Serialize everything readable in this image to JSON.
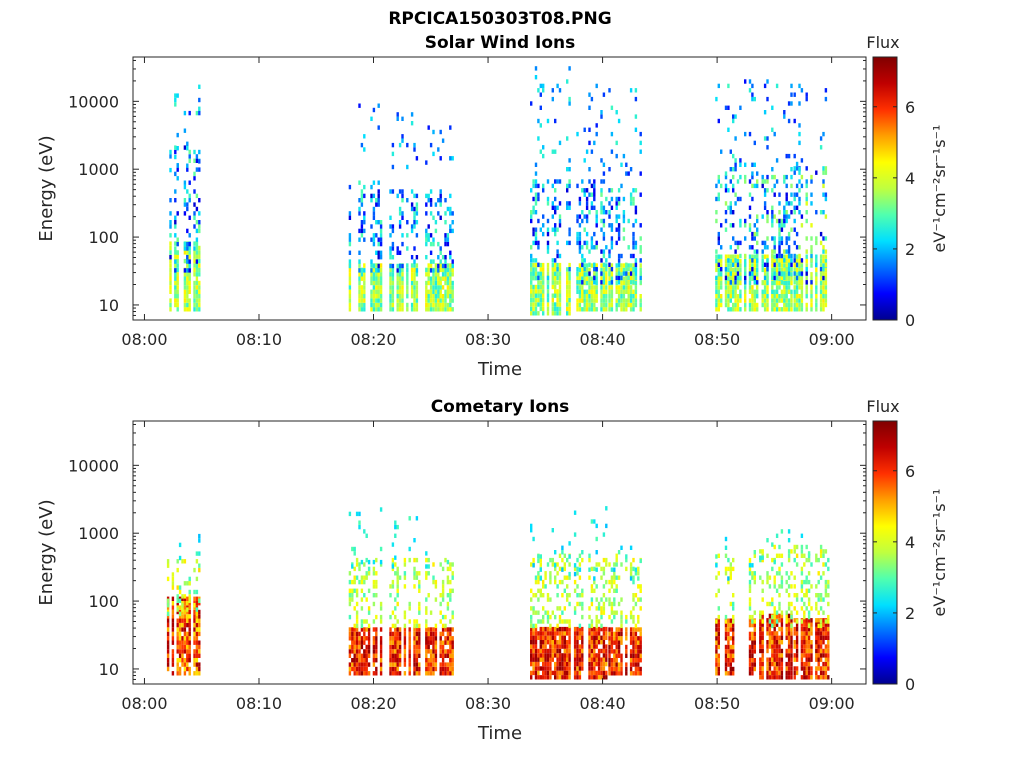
{
  "figure": {
    "title": "RPCICA150303T08.PNG",
    "colormap": [
      "#00008f",
      "#0000ff",
      "#0070ff",
      "#00dfff",
      "#50ffaf",
      "#bfff40",
      "#ffff00",
      "#ff9f00",
      "#ff3000",
      "#bf0000",
      "#800000"
    ]
  },
  "chart_data": [
    {
      "type": "heatmap",
      "title": "Solar Wind Ions",
      "xlabel": "Time",
      "ylabel": "Energy (eV)",
      "yscale": "log",
      "xlim": [
        "07:59:00",
        "09:03:00"
      ],
      "ylim": [
        6,
        45000
      ],
      "xticks": [
        "08:00",
        "08:10",
        "08:20",
        "08:30",
        "08:40",
        "08:50",
        "09:00"
      ],
      "yticks": [
        10,
        100,
        1000,
        10000
      ],
      "ytick_labels": [
        "10",
        "100",
        "1000",
        "10000"
      ],
      "colorbar": {
        "label": "Flux",
        "units": "eV⁻¹cm⁻²sr⁻¹s⁻¹",
        "range": [
          0,
          7.4
        ],
        "ticks": [
          0,
          2,
          4,
          6
        ]
      },
      "bursts": [
        {
          "start": "08:01:45",
          "end": "08:04:50",
          "low": {
            "e": [
              8,
              80
            ],
            "flux": [
              2.5,
              4.6
            ]
          },
          "mid": {
            "e": [
              30,
              2000
            ],
            "flux": [
              0.4,
              3.2
            ]
          },
          "high": {
            "e": [
              900,
              30000
            ],
            "flux": [
              0.8,
              3.0
            ]
          }
        },
        {
          "start": "08:17:50",
          "end": "08:20:40",
          "low": {
            "e": [
              8,
              40
            ],
            "flux": [
              2.5,
              4.6
            ]
          },
          "mid": {
            "e": [
              30,
              600
            ],
            "flux": [
              0.4,
              3.0
            ]
          },
          "high": {
            "e": [
              1000,
              12000
            ],
            "flux": [
              0.8,
              2.6
            ]
          }
        },
        {
          "start": "08:21:10",
          "end": "08:24:00",
          "low": {
            "e": [
              8,
              40
            ],
            "flux": [
              2.5,
              4.6
            ]
          },
          "mid": {
            "e": [
              30,
              500
            ],
            "flux": [
              0.4,
              3.0
            ]
          },
          "high": {
            "e": [
              1000,
              6000
            ],
            "flux": [
              0.8,
              2.6
            ]
          }
        },
        {
          "start": "08:24:30",
          "end": "08:27:00",
          "low": {
            "e": [
              8,
              40
            ],
            "flux": [
              2.5,
              4.6
            ]
          },
          "mid": {
            "e": [
              30,
              500
            ],
            "flux": [
              0.4,
              3.0
            ]
          },
          "high": {
            "e": [
              1000,
              6000
            ],
            "flux": [
              0.8,
              2.6
            ]
          }
        },
        {
          "start": "08:33:40",
          "end": "08:37:10",
          "low": {
            "e": [
              7,
              40
            ],
            "flux": [
              2.5,
              4.6
            ]
          },
          "mid": {
            "e": [
              20,
              700
            ],
            "flux": [
              0.4,
              3.2
            ]
          },
          "high": {
            "e": [
              800,
              30000
            ],
            "flux": [
              0.8,
              2.8
            ]
          }
        },
        {
          "start": "08:37:30",
          "end": "08:40:20",
          "low": {
            "e": [
              8,
              40
            ],
            "flux": [
              2.5,
              4.6
            ]
          },
          "mid": {
            "e": [
              20,
              700
            ],
            "flux": [
              0.4,
              3.2
            ]
          },
          "high": {
            "e": [
              800,
              20000
            ],
            "flux": [
              0.8,
              2.8
            ]
          }
        },
        {
          "start": "08:40:30",
          "end": "08:43:20",
          "low": {
            "e": [
              8,
              40
            ],
            "flux": [
              2.5,
              4.6
            ]
          },
          "mid": {
            "e": [
              20,
              600
            ],
            "flux": [
              0.4,
              3.2
            ]
          },
          "high": {
            "e": [
              800,
              15000
            ],
            "flux": [
              0.8,
              2.8
            ]
          }
        },
        {
          "start": "08:49:50",
          "end": "08:53:30",
          "low": {
            "e": [
              8,
              50
            ],
            "flux": [
              2.5,
              4.6
            ]
          },
          "mid": {
            "e": [
              20,
              800
            ],
            "flux": [
              0.4,
              3.6
            ]
          },
          "high": {
            "e": [
              800,
              20000
            ],
            "flux": [
              0.8,
              2.8
            ]
          }
        },
        {
          "start": "08:53:40",
          "end": "08:56:30",
          "low": {
            "e": [
              8,
              50
            ],
            "flux": [
              2.5,
              4.6
            ]
          },
          "mid": {
            "e": [
              20,
              800
            ],
            "flux": [
              0.4,
              3.6
            ]
          },
          "high": {
            "e": [
              800,
              20000
            ],
            "flux": [
              0.8,
              2.8
            ]
          }
        },
        {
          "start": "08:56:40",
          "end": "08:59:40",
          "low": {
            "e": [
              8,
              50
            ],
            "flux": [
              2.5,
              4.6
            ]
          },
          "mid": {
            "e": [
              20,
              1200
            ],
            "flux": [
              0.4,
              4.2
            ]
          },
          "high": {
            "e": [
              800,
              20000
            ],
            "flux": [
              0.8,
              2.8
            ]
          }
        }
      ]
    },
    {
      "type": "heatmap",
      "title": "Cometary Ions",
      "xlabel": "Time",
      "ylabel": "Energy (eV)",
      "yscale": "log",
      "xlim": [
        "07:59:00",
        "09:03:00"
      ],
      "ylim": [
        6,
        45000
      ],
      "xticks": [
        "08:00",
        "08:10",
        "08:20",
        "08:30",
        "08:40",
        "08:50",
        "09:00"
      ],
      "yticks": [
        10,
        100,
        1000,
        10000
      ],
      "ytick_labels": [
        "10",
        "100",
        "1000",
        "10000"
      ],
      "colorbar": {
        "label": "Flux",
        "units": "eV⁻¹cm⁻²sr⁻¹s⁻¹",
        "range": [
          0,
          7.4
        ],
        "ticks": [
          0,
          2,
          4,
          6
        ]
      },
      "bursts": [
        {
          "start": "08:01:45",
          "end": "08:04:50",
          "low": {
            "e": [
              8,
              110
            ],
            "flux": [
              4.5,
              7.0
            ]
          },
          "mid": {
            "e": [
              60,
              400
            ],
            "flux": [
              2.8,
              4.8
            ]
          },
          "high": {
            "e": [
              400,
              900
            ],
            "flux": [
              2.0,
              3.0
            ]
          }
        },
        {
          "start": "08:17:50",
          "end": "08:20:40",
          "low": {
            "e": [
              8,
              40
            ],
            "flux": [
              5.0,
              7.2
            ]
          },
          "mid": {
            "e": [
              40,
              400
            ],
            "flux": [
              2.8,
              4.6
            ]
          },
          "high": {
            "e": [
              300,
              2200
            ],
            "flux": [
              2.0,
              3.0
            ]
          }
        },
        {
          "start": "08:21:10",
          "end": "08:24:00",
          "low": {
            "e": [
              8,
              40
            ],
            "flux": [
              5.0,
              7.2
            ]
          },
          "mid": {
            "e": [
              40,
              400
            ],
            "flux": [
              2.8,
              4.6
            ]
          },
          "high": {
            "e": [
              300,
              1600
            ],
            "flux": [
              2.0,
              3.0
            ]
          }
        },
        {
          "start": "08:24:30",
          "end": "08:27:00",
          "low": {
            "e": [
              8,
              40
            ],
            "flux": [
              5.0,
              7.2
            ]
          },
          "mid": {
            "e": [
              40,
              400
            ],
            "flux": [
              2.8,
              4.6
            ]
          },
          "high": {
            "e": [
              300,
              600
            ],
            "flux": [
              2.0,
              3.0
            ]
          }
        },
        {
          "start": "08:33:40",
          "end": "08:37:10",
          "low": {
            "e": [
              7,
              40
            ],
            "flux": [
              5.0,
              7.2
            ]
          },
          "mid": {
            "e": [
              40,
              500
            ],
            "flux": [
              2.8,
              4.6
            ]
          },
          "high": {
            "e": [
              200,
              1500
            ],
            "flux": [
              2.0,
              3.0
            ]
          }
        },
        {
          "start": "08:37:30",
          "end": "08:40:20",
          "low": {
            "e": [
              7,
              40
            ],
            "flux": [
              5.0,
              7.2
            ]
          },
          "mid": {
            "e": [
              40,
              500
            ],
            "flux": [
              2.8,
              4.6
            ]
          },
          "high": {
            "e": [
              200,
              2200
            ],
            "flux": [
              2.0,
              3.0
            ]
          }
        },
        {
          "start": "08:40:30",
          "end": "08:43:20",
          "low": {
            "e": [
              8,
              40
            ],
            "flux": [
              5.0,
              7.2
            ]
          },
          "mid": {
            "e": [
              40,
              500
            ],
            "flux": [
              2.8,
              4.6
            ]
          },
          "high": {
            "e": [
              200,
              1000
            ],
            "flux": [
              2.0,
              3.0
            ]
          }
        },
        {
          "start": "08:49:50",
          "end": "08:53:30",
          "low": {
            "e": [
              8,
              50
            ],
            "flux": [
              5.0,
              7.2
            ]
          },
          "mid": {
            "e": [
              40,
              500
            ],
            "flux": [
              2.8,
              4.6
            ]
          },
          "high": {
            "e": [
              200,
              800
            ],
            "flux": [
              2.0,
              3.0
            ]
          }
        },
        {
          "start": "08:53:40",
          "end": "08:56:30",
          "low": {
            "e": [
              7,
              60
            ],
            "flux": [
              5.0,
              7.2
            ]
          },
          "mid": {
            "e": [
              40,
              600
            ],
            "flux": [
              2.8,
              4.6
            ]
          },
          "high": {
            "e": [
              300,
              1000
            ],
            "flux": [
              2.0,
              3.0
            ]
          }
        },
        {
          "start": "08:56:40",
          "end": "08:59:40",
          "low": {
            "e": [
              7,
              50
            ],
            "flux": [
              5.0,
              7.2
            ]
          },
          "mid": {
            "e": [
              40,
              600
            ],
            "flux": [
              2.8,
              4.6
            ]
          },
          "high": {
            "e": [
              300,
              1000
            ],
            "flux": [
              2.0,
              3.0
            ]
          }
        }
      ]
    }
  ]
}
